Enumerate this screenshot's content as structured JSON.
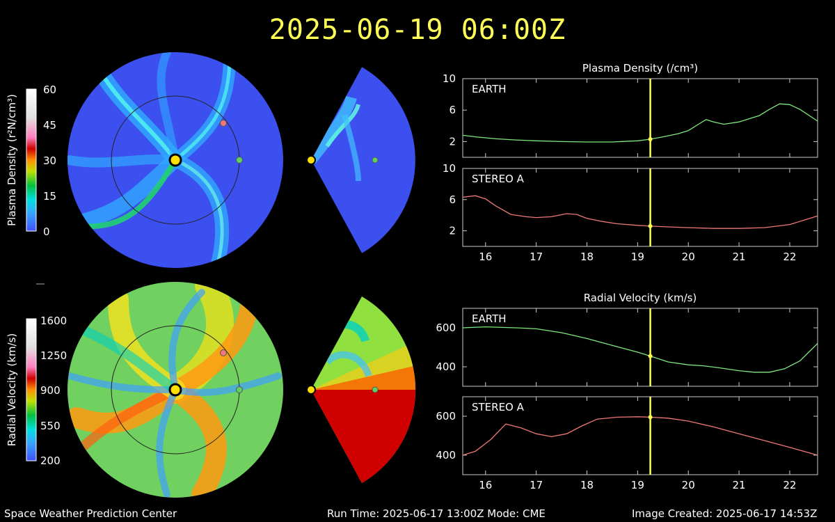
{
  "header": {
    "timestamp": "2025-06-19  06:00Z"
  },
  "footer": {
    "left": "Space Weather Prediction Center",
    "center": "Run Time: 2025-06-17 13:00Z  Mode: CME",
    "right": "Image Created: 2025-06-17 14:53Z"
  },
  "colorbars": {
    "density": {
      "label": "Plasma Density (r²N/cm³)",
      "ticks": [
        "60",
        "45",
        "30",
        "15",
        "0"
      ]
    },
    "velocity": {
      "label": "Radial Velocity (km/s)",
      "ticks": [
        "1600",
        "1250",
        "900",
        "550",
        "200"
      ]
    }
  },
  "colors": {
    "earth_series": "#7fe87f",
    "stereo_series": "#f07878",
    "cursor": "#ffff55",
    "header": "#ffff55"
  },
  "chart_data": [
    {
      "type": "line",
      "title": "Plasma Density (/cm³)",
      "panel": "EARTH",
      "xlim": [
        15.55,
        22.55
      ],
      "ylim": [
        0,
        10
      ],
      "yticks": [
        2,
        6,
        10
      ],
      "xticks": [
        16,
        17,
        18,
        19,
        20,
        21,
        22
      ],
      "cursor_x": 19.25,
      "grid": false,
      "series": [
        {
          "color": "#7fe87f",
          "x": [
            15.55,
            15.8,
            16.2,
            16.6,
            17.0,
            17.5,
            18.0,
            18.5,
            19.0,
            19.25,
            19.5,
            19.8,
            20.0,
            20.2,
            20.35,
            20.5,
            20.7,
            21.0,
            21.2,
            21.4,
            21.6,
            21.8,
            22.0,
            22.2,
            22.55
          ],
          "y": [
            2.8,
            2.6,
            2.35,
            2.2,
            2.1,
            2.0,
            1.95,
            1.95,
            2.1,
            2.3,
            2.6,
            3.0,
            3.4,
            4.2,
            4.8,
            4.5,
            4.2,
            4.5,
            4.9,
            5.3,
            6.1,
            6.8,
            6.7,
            6.1,
            4.6
          ]
        }
      ]
    },
    {
      "type": "line",
      "panel": "STEREO A",
      "xlim": [
        15.55,
        22.55
      ],
      "ylim": [
        0,
        10
      ],
      "yticks": [
        2,
        6,
        10
      ],
      "xticks": [
        16,
        17,
        18,
        19,
        20,
        21,
        22
      ],
      "xticklabels": [
        "16",
        "17",
        "18",
        "19",
        "20",
        "21",
        "22"
      ],
      "cursor_x": 19.25,
      "grid": false,
      "series": [
        {
          "color": "#f07878",
          "x": [
            15.55,
            15.8,
            16.0,
            16.2,
            16.5,
            16.8,
            17.0,
            17.3,
            17.6,
            17.8,
            18.0,
            18.3,
            18.6,
            19.0,
            19.25,
            19.6,
            20.0,
            20.5,
            21.0,
            21.5,
            22.0,
            22.3,
            22.55
          ],
          "y": [
            6.3,
            6.5,
            6.1,
            5.2,
            4.1,
            3.8,
            3.7,
            3.8,
            4.2,
            4.1,
            3.6,
            3.2,
            2.9,
            2.7,
            2.6,
            2.5,
            2.4,
            2.3,
            2.3,
            2.4,
            2.8,
            3.4,
            3.9
          ]
        }
      ]
    },
    {
      "type": "line",
      "title": "Radial Velocity (km/s)",
      "panel": "EARTH",
      "xlim": [
        15.55,
        22.55
      ],
      "ylim": [
        300,
        700
      ],
      "yticks": [
        400,
        600
      ],
      "xticks": [
        16,
        17,
        18,
        19,
        20,
        21,
        22
      ],
      "cursor_x": 19.25,
      "grid": false,
      "series": [
        {
          "color": "#7fe87f",
          "x": [
            15.55,
            16.0,
            16.6,
            17.0,
            17.5,
            18.0,
            18.5,
            19.0,
            19.25,
            19.6,
            20.0,
            20.3,
            20.6,
            21.0,
            21.3,
            21.6,
            21.9,
            22.2,
            22.55
          ],
          "y": [
            600,
            605,
            600,
            595,
            575,
            545,
            510,
            475,
            455,
            425,
            410,
            405,
            395,
            380,
            372,
            372,
            390,
            430,
            520
          ]
        }
      ]
    },
    {
      "type": "line",
      "panel": "STEREO A",
      "xlim": [
        15.55,
        22.55
      ],
      "ylim": [
        300,
        700
      ],
      "yticks": [
        400,
        600
      ],
      "xticks": [
        16,
        17,
        18,
        19,
        20,
        21,
        22
      ],
      "xticklabels": [
        "16",
        "17",
        "18",
        "19",
        "20",
        "21",
        "22"
      ],
      "cursor_x": 19.25,
      "grid": false,
      "series": [
        {
          "color": "#f07878",
          "x": [
            15.55,
            15.8,
            16.1,
            16.4,
            16.7,
            17.0,
            17.3,
            17.6,
            17.9,
            18.2,
            18.6,
            19.0,
            19.25,
            19.6,
            20.0,
            20.5,
            21.0,
            21.5,
            22.0,
            22.55
          ],
          "y": [
            400,
            420,
            480,
            560,
            540,
            510,
            495,
            510,
            550,
            585,
            595,
            597,
            595,
            590,
            575,
            545,
            510,
            475,
            440,
            400
          ]
        }
      ]
    }
  ]
}
